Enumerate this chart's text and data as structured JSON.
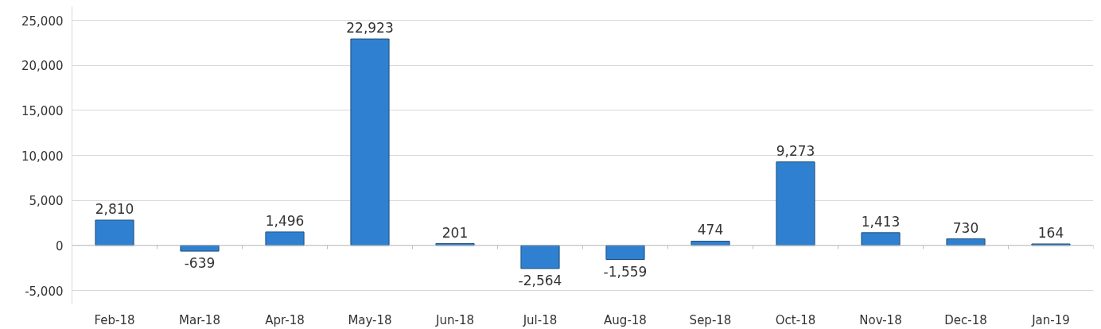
{
  "chart_data": {
    "type": "bar",
    "categories": [
      "Feb-18",
      "Mar-18",
      "Apr-18",
      "May-18",
      "Jun-18",
      "Jul-18",
      "Aug-18",
      "Sep-18",
      "Oct-18",
      "Nov-18",
      "Dec-18",
      "Jan-19"
    ],
    "values": [
      2810,
      -639,
      1496,
      22923,
      201,
      -2564,
      -1559,
      474,
      9273,
      1413,
      730,
      164
    ],
    "color": "#2f80d1",
    "ylim": [
      -6500,
      26500
    ],
    "yticks": [
      {
        "value": -5000,
        "label": "-5,000"
      },
      0,
      {
        "value": 5000,
        "label": "5,000"
      },
      {
        "value": 10000,
        "label": "10,000"
      },
      {
        "value": 15000,
        "label": "15,000"
      },
      {
        "value": 20000,
        "label": "20,000"
      },
      {
        "value": 25000,
        "label": "25,000"
      }
    ],
    "value_labels": [
      "2,810",
      "-639",
      "1,496",
      "22,923",
      "201",
      "-2,564",
      "-1,559",
      "474",
      "9,273",
      "1,413",
      "730",
      "164"
    ],
    "grid": "y"
  }
}
